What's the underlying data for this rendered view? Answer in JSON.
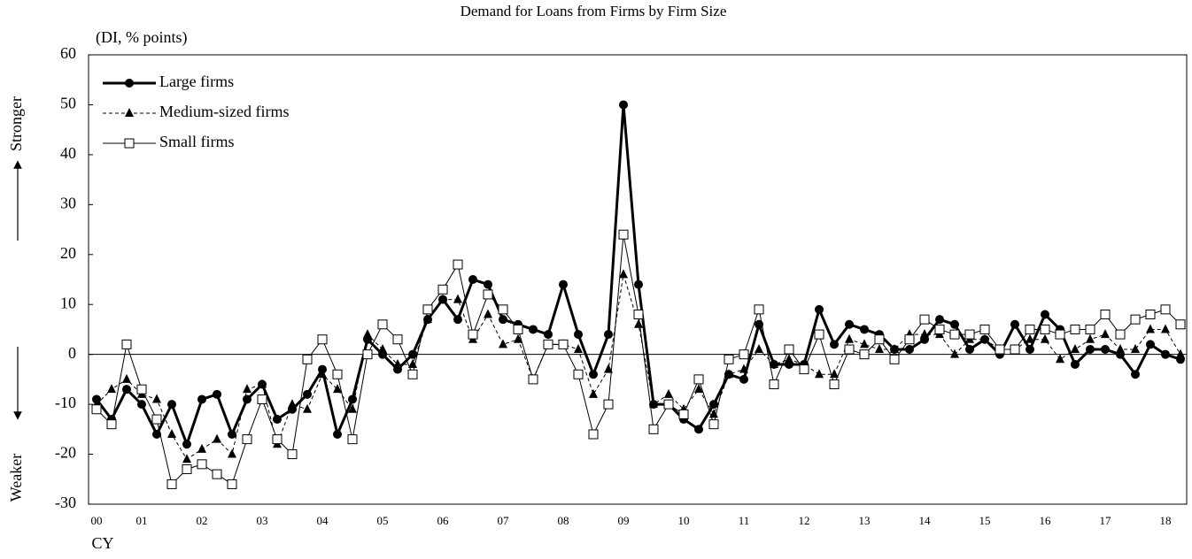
{
  "chart_data": {
    "type": "line",
    "title": "Demand for Loans from Firms by Firm Size",
    "y_label": "(DI, % points)",
    "x_label": "CY",
    "annotations": [
      "Stronger",
      "Weaker"
    ],
    "categories": [
      "00",
      null,
      null,
      "01",
      null,
      null,
      null,
      "02",
      null,
      null,
      null,
      "03",
      null,
      null,
      null,
      "04",
      null,
      null,
      null,
      "05",
      null,
      null,
      null,
      "06",
      null,
      null,
      null,
      "07",
      null,
      null,
      null,
      "08",
      null,
      null,
      null,
      "09",
      null,
      null,
      null,
      "10",
      null,
      null,
      null,
      "11",
      null,
      null,
      null,
      "12",
      null,
      null,
      null,
      "13",
      null,
      null,
      null,
      "14",
      null,
      null,
      null,
      "15",
      null,
      null,
      null,
      "16",
      null,
      null,
      null,
      "17",
      null,
      null,
      null,
      "18",
      null
    ],
    "series": [
      {
        "name": "Large firms",
        "color": "#000000",
        "marker": "circle",
        "dash": "solid",
        "width": 3,
        "values": [
          -9,
          -13,
          -7,
          -10,
          -16,
          -10,
          -18,
          -9,
          -8,
          -16,
          -9,
          -6,
          -13,
          -11,
          -8,
          -3,
          -16,
          -9,
          3,
          0,
          -3,
          0,
          7,
          11,
          7,
          15,
          14,
          7,
          6,
          5,
          4,
          14,
          4,
          -4,
          4,
          50,
          14,
          -10,
          -10,
          -13,
          -15,
          -10,
          -4,
          -5,
          6,
          -2,
          -2,
          -2,
          9,
          2,
          6,
          5,
          4,
          1,
          1,
          3,
          7,
          6,
          1,
          3,
          0,
          6,
          1,
          8,
          5,
          -2,
          1,
          1,
          0,
          -4,
          2,
          0,
          -1
        ]
      },
      {
        "name": "Medium-sized firms",
        "color": "#000000",
        "marker": "triangle",
        "dash": "dashed",
        "width": 1,
        "values": [
          -10,
          -7,
          -5,
          -8,
          -9,
          -16,
          -21,
          -19,
          -17,
          -20,
          -7,
          -6,
          -18,
          -10,
          -11,
          -4,
          -7,
          -11,
          4,
          1,
          -2,
          -2,
          7,
          11,
          11,
          3,
          8,
          2,
          3,
          -5,
          2,
          2,
          1,
          -8,
          -3,
          16,
          6,
          -10,
          -8,
          -11,
          -7,
          -12,
          -4,
          -3,
          1,
          -2,
          -1,
          -2,
          -4,
          -4,
          3,
          2,
          1,
          1,
          4,
          4,
          4,
          0,
          3,
          3,
          1,
          1,
          3,
          3,
          -1,
          1,
          3,
          4,
          1,
          1,
          5,
          5,
          0
        ]
      },
      {
        "name": "Small firms",
        "color": "#000000",
        "marker": "square",
        "dash": "solid",
        "width": 1,
        "values": [
          -11,
          -14,
          2,
          -7,
          -13,
          -26,
          -23,
          -22,
          -24,
          -26,
          -17,
          -9,
          -17,
          -20,
          -1,
          3,
          -4,
          -17,
          0,
          6,
          3,
          -4,
          9,
          13,
          18,
          4,
          12,
          9,
          5,
          -5,
          2,
          2,
          -4,
          -16,
          -10,
          24,
          8,
          -15,
          -10,
          -12,
          -5,
          -14,
          -1,
          0,
          9,
          -6,
          1,
          -3,
          4,
          -6,
          1,
          0,
          3,
          -1,
          3,
          7,
          5,
          4,
          4,
          5,
          1,
          1,
          5,
          5,
          4,
          5,
          5,
          8,
          4,
          7,
          8,
          9,
          6
        ]
      }
    ],
    "ylim": [
      -30,
      60
    ],
    "yticks": [
      -30,
      -20,
      -10,
      0,
      10,
      20,
      30,
      40,
      50,
      60
    ],
    "zero_line": true,
    "grid": false,
    "legend": "upper left"
  }
}
